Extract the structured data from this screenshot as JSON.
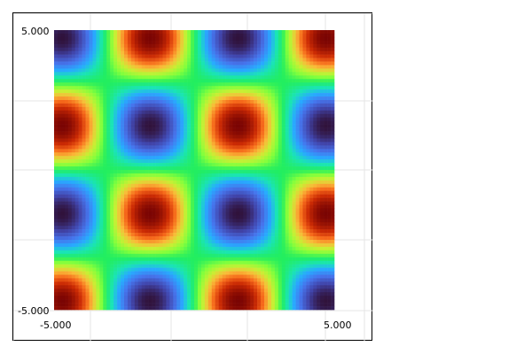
{
  "chart_data": {
    "type": "heatmap",
    "title": "",
    "xlabel": "",
    "ylabel": "",
    "xlim": [
      -5.0,
      5.0
    ],
    "ylim": [
      -5.0,
      5.0
    ],
    "grid": true,
    "colormap": "turbo",
    "function": "sin(x) * sin(y)",
    "x_tick_labels": [
      "-5.000",
      "5.000"
    ],
    "y_tick_labels": [
      "-5.000",
      "5.000"
    ],
    "grid_resolution": [
      80,
      80
    ],
    "colors": {
      "frame": "#000000",
      "gridline": "#e6e6e6",
      "background": "#ffffff"
    }
  }
}
